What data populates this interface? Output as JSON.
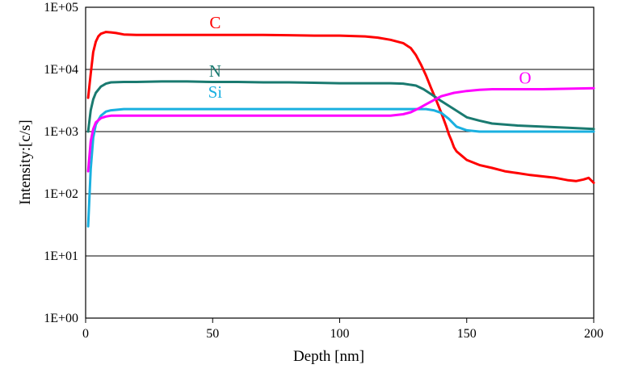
{
  "chart_data": {
    "type": "line",
    "title": "",
    "xlabel": "Depth  [nm]",
    "ylabel": "Intensity:[c/s]",
    "xlim": [
      0,
      200
    ],
    "ylim": [
      1,
      100000
    ],
    "yscale": "log",
    "xticks": [
      0,
      50,
      100,
      150,
      200
    ],
    "xtick_labels": [
      "0",
      "50",
      "100",
      "150",
      "200"
    ],
    "yticks": [
      1,
      10,
      100,
      1000,
      10000,
      100000
    ],
    "ytick_labels": [
      "1E+00",
      "1E+01",
      "1E+02",
      "1E+03",
      "1E+04",
      "1E+05"
    ],
    "grid": "horizontal",
    "legend": "none",
    "series": [
      {
        "name": "C",
        "color": "#ff0000",
        "label_at": [
          51,
          46000
        ],
        "x": [
          1,
          2,
          3,
          4,
          5,
          6,
          8,
          10,
          12,
          15,
          20,
          30,
          40,
          50,
          60,
          70,
          80,
          90,
          100,
          110,
          115,
          120,
          125,
          128,
          130,
          132,
          134,
          136,
          138,
          140,
          142,
          143,
          144,
          145,
          146,
          148,
          150,
          155,
          160,
          165,
          170,
          175,
          180,
          185,
          190,
          193,
          196,
          198,
          200
        ],
        "y": [
          3500,
          8500,
          19000,
          28000,
          34000,
          37500,
          40000,
          39500,
          38500,
          36500,
          36000,
          36000,
          36000,
          36000,
          36000,
          36000,
          35500,
          35000,
          35000,
          34000,
          32500,
          30000,
          26500,
          22000,
          17000,
          12000,
          8000,
          5000,
          3200,
          2000,
          1200,
          900,
          720,
          560,
          480,
          410,
          350,
          290,
          260,
          230,
          215,
          200,
          190,
          180,
          165,
          160,
          170,
          180,
          150
        ]
      },
      {
        "name": "N",
        "color": "#1a7a70",
        "label_at": [
          51,
          7600
        ],
        "x": [
          1,
          2,
          3,
          4,
          6,
          8,
          10,
          15,
          20,
          30,
          40,
          50,
          60,
          70,
          80,
          90,
          100,
          110,
          120,
          125,
          130,
          133,
          136,
          140,
          145,
          150,
          155,
          160,
          170,
          180,
          190,
          200
        ],
        "y": [
          1000,
          2200,
          3300,
          4200,
          5300,
          5900,
          6200,
          6300,
          6300,
          6400,
          6400,
          6300,
          6300,
          6200,
          6200,
          6100,
          6000,
          6000,
          6000,
          5900,
          5500,
          4800,
          4000,
          3100,
          2300,
          1700,
          1500,
          1350,
          1250,
          1200,
          1150,
          1100
        ]
      },
      {
        "name": "Si",
        "color": "#1ab0e0",
        "label_at": [
          51,
          3500
        ],
        "x": [
          1,
          2,
          3,
          4,
          6,
          8,
          10,
          15,
          20,
          30,
          40,
          50,
          60,
          70,
          80,
          90,
          100,
          110,
          120,
          125,
          130,
          134,
          137,
          140,
          143,
          146,
          150,
          155,
          160,
          170,
          180,
          190,
          200
        ],
        "y": [
          30,
          250,
          800,
          1300,
          1800,
          2100,
          2200,
          2300,
          2300,
          2300,
          2300,
          2300,
          2300,
          2300,
          2300,
          2300,
          2300,
          2300,
          2300,
          2300,
          2300,
          2300,
          2200,
          2000,
          1600,
          1200,
          1050,
          1000,
          1000,
          1000,
          1000,
          1000,
          1000
        ]
      },
      {
        "name": "O",
        "color": "#ff00ff",
        "label_at": [
          173,
          5900
        ],
        "x": [
          1,
          2,
          3,
          4,
          6,
          8,
          10,
          15,
          20,
          30,
          40,
          50,
          60,
          70,
          80,
          90,
          100,
          110,
          120,
          125,
          128,
          131,
          134,
          137,
          140,
          145,
          150,
          155,
          160,
          170,
          180,
          190,
          200
        ],
        "y": [
          230,
          700,
          1100,
          1400,
          1650,
          1750,
          1800,
          1800,
          1800,
          1800,
          1800,
          1800,
          1800,
          1800,
          1800,
          1800,
          1800,
          1800,
          1800,
          1900,
          2050,
          2350,
          2750,
          3200,
          3700,
          4200,
          4500,
          4700,
          4800,
          4800,
          4800,
          4900,
          5000
        ]
      }
    ]
  }
}
